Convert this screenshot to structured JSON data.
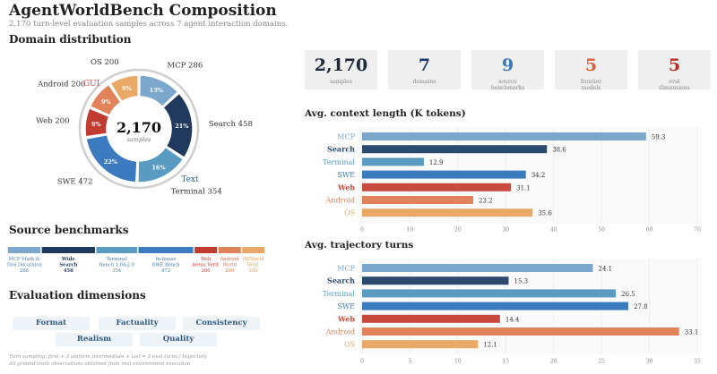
{
  "header": {
    "title": "AgentWorldBench Composition",
    "subtitle": "2,170 turn-level evaluation samples across 7 agent interaction domains."
  },
  "sections": {
    "domain": "Domain distribution",
    "source": "Source benchmarks",
    "evaluation": "Evaluation dimensions"
  },
  "stats": [
    {
      "value": "2,170",
      "label": "samples",
      "color": "#1e2a3a"
    },
    {
      "value": "7",
      "label": "domains",
      "color": "#1e3a5f"
    },
    {
      "value": "9",
      "label": "source\nbenchmarks",
      "color": "#3a78b5"
    },
    {
      "value": "5",
      "label": "frontier\nmodels",
      "color": "#e0603a"
    },
    {
      "value": "5",
      "label": "eval\ndimensions",
      "color": "#b52f24"
    }
  ],
  "colors": {
    "MCP": "#7ba7cc",
    "Search": "#2b4a6e",
    "Terminal": "#5a9bc2",
    "SWE": "#3c7bbf",
    "Web": "#c94a3c",
    "Android": "#e0835a",
    "OS": "#e9a865"
  },
  "donut": {
    "center_value": "2,170",
    "center_label": "samples",
    "slices": [
      {
        "name": "MCP",
        "count": 286,
        "pct": "13%",
        "label": "MCP  286",
        "color": "#7ba7cc",
        "label_color": "#333"
      },
      {
        "name": "Search",
        "count": 458,
        "pct": "21%",
        "label": "Search  458",
        "color": "#1f3a5c",
        "label_color": "#333"
      },
      {
        "name": "Terminal",
        "count": 354,
        "pct": "16%",
        "label": "Terminal  354",
        "color": "#5a9bc2",
        "label_color": "#333"
      },
      {
        "name": "SWE",
        "count": 472,
        "pct": "22%",
        "label": "SWE  472",
        "color": "#3c7bbf",
        "label_color": "#333"
      },
      {
        "name": "Web",
        "count": 200,
        "pct": "9%",
        "label": "Web  200",
        "color": "#c23b30",
        "label_color": "#333"
      },
      {
        "name": "Android",
        "count": 200,
        "pct": "9%",
        "label": "Android  200",
        "color": "#e0835a",
        "label_color": "#333"
      },
      {
        "name": "OS",
        "count": 200,
        "pct": "9%",
        "label": "OS  200",
        "color": "#e9a865",
        "label_color": "#333"
      }
    ],
    "group_labels": [
      {
        "text": "GUI",
        "color": "#d9534f"
      },
      {
        "text": "Text",
        "color": "#2b5a85"
      }
    ]
  },
  "source_benchmarks": [
    {
      "label": "MCP Mark &\nTool Decathlon\n286",
      "share": 286,
      "color": "#7ba7cc",
      "text_color": "#4a7eaa"
    },
    {
      "label": "Wide\nSearch\n458",
      "share": 458,
      "color": "#1f3a5c",
      "text_color": "#1f3a5c"
    },
    {
      "label": "Terminal\nBench 1.0&2.0\n354",
      "share": 354,
      "color": "#5a9bc2",
      "text_color": "#4a7eaa"
    },
    {
      "label": "In-house\nSWE Bench\n472",
      "share": 472,
      "color": "#3c7bbf",
      "text_color": "#3c6fa8"
    },
    {
      "label": "Web\nArena Verif.\n200",
      "share": 200,
      "color": "#c23b30",
      "text_color": "#c23b30"
    },
    {
      "label": "Android\nWorld\n200",
      "share": 200,
      "color": "#e0835a",
      "text_color": "#d56f44"
    },
    {
      "label": "OSWorld\nVerif.\n200",
      "share": 200,
      "color": "#e9a865",
      "text_color": "#e09a50"
    }
  ],
  "eval_dimensions": [
    "Format",
    "Factuality",
    "Consistency",
    "Realism",
    "Quality"
  ],
  "footnotes": [
    "Turn sampling: first + 3 uniform intermediate + last = 5 eval turns / trajectory",
    "All ground-truth observations obtained from real environment execution"
  ],
  "chart_data": [
    {
      "type": "bar",
      "orientation": "horizontal",
      "title": "Avg. context length (K tokens)",
      "categories": [
        "MCP",
        "Search",
        "Terminal",
        "SWE",
        "Web",
        "Android",
        "OS"
      ],
      "values": [
        59.3,
        38.6,
        12.9,
        34.2,
        31.1,
        23.2,
        35.6
      ],
      "value_labels": [
        "59.3",
        "38.6",
        "12.9",
        "34.2",
        "31.1",
        "23.2",
        "35.6"
      ],
      "xlim": [
        0,
        70
      ],
      "ticks": [
        0,
        10,
        20,
        30,
        40,
        50,
        60,
        70
      ],
      "grid": true
    },
    {
      "type": "bar",
      "orientation": "horizontal",
      "title": "Avg. trajectory turns",
      "categories": [
        "MCP",
        "Search",
        "Terminal",
        "SWE",
        "Web",
        "Android",
        "OS"
      ],
      "values": [
        24.1,
        15.3,
        26.5,
        27.8,
        14.4,
        33.1,
        12.1
      ],
      "value_labels": [
        "24.1",
        "15.3",
        "26.5",
        "27.8",
        "14.4",
        "33.1",
        "12.1"
      ],
      "xlim": [
        0,
        35
      ],
      "ticks": [
        0,
        5,
        10,
        15,
        20,
        25,
        30,
        35
      ],
      "grid": true
    }
  ]
}
